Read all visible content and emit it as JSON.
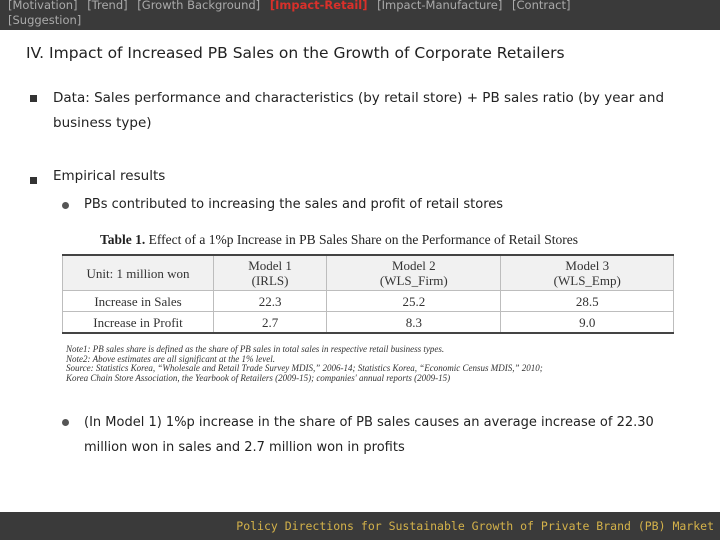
{
  "nav": {
    "items": [
      "[Motivation]",
      "[Trend]",
      "[Growth Background]",
      "[Impact-Retail]",
      "[Impact-Manufacture]",
      "[Contract]",
      "[Suggestion]"
    ],
    "active_index": 3
  },
  "title": "IV. Impact of Increased PB Sales on the Growth of Corporate Retailers",
  "bullets": {
    "data_line": "Data: Sales performance and characteristics (by retail store) + PB sales ratio (by year and business type)",
    "empirical": "Empirical results",
    "sub1": "PBs contributed to increasing the sales and profit of retail stores",
    "sub2": "(In Model 1) 1%p increase in the share of PB sales causes an average increase of 22.30 million won in sales and 2.7 million won in profits"
  },
  "table": {
    "caption_label": "Table 1.",
    "caption_text": "Effect of a 1%p Increase in PB Sales Share on the Performance of Retail Stores",
    "unit": "Unit: 1 million won",
    "columns": [
      {
        "model": "Model 1",
        "method": "(IRLS)"
      },
      {
        "model": "Model 2",
        "method": "(WLS_Firm)"
      },
      {
        "model": "Model 3",
        "method": "(WLS_Emp)"
      }
    ],
    "rows": [
      {
        "label": "Increase in Sales",
        "values": [
          "22.3",
          "25.2",
          "28.5"
        ]
      },
      {
        "label": "Increase in Profit",
        "values": [
          "2.7",
          "8.3",
          "9.0"
        ]
      }
    ],
    "notes": [
      "Note1: PB sales share is defined as the share of PB sales in total sales in respective retail business types.",
      "Note2: Above estimates are all significant at the 1% level.",
      "Source: Statistics Korea, “Wholesale and Retail Trade Survey MDIS,” 2006-14; Statistics Korea, “Economic Census MDIS,” 2010;",
      "Korea Chain Store Association, the Yearbook of Retailers (2009-15); companies' annual reports (2009-15)"
    ]
  },
  "footer": "Policy Directions for Sustainable Growth of Private Brand (PB) Market",
  "colors": {
    "bar_bg": "#3a3a3a",
    "active_nav": "#d9302a",
    "footer_text": "#d4b24a"
  }
}
